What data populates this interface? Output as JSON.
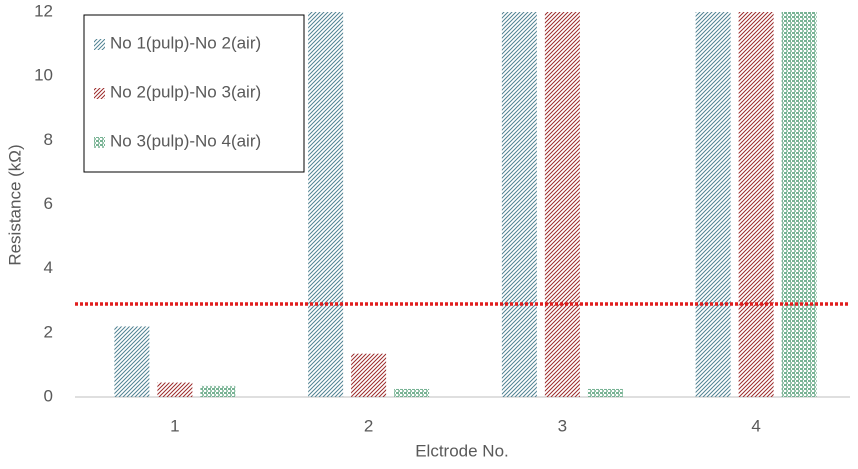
{
  "chart_data": {
    "type": "bar",
    "x_label": "Elctrode No.",
    "y_label": "Resistance (kΩ)",
    "categories": [
      "1",
      "2",
      "3",
      "4"
    ],
    "series": [
      {
        "name": "No 1(pulp)-No 2(air)",
        "color": "#4f8292",
        "hatch": "diagonal",
        "values": [
          2.2,
          12,
          12,
          12
        ]
      },
      {
        "name": "No 2(pulp)-No 3(air)",
        "color": "#9c2a2a",
        "hatch": "diagonal",
        "values": [
          0.45,
          1.35,
          12,
          12
        ]
      },
      {
        "name": "No 3(pulp)-No 4(air)",
        "color": "#2f8a5a",
        "hatch": "dashes",
        "values": [
          0.35,
          0.25,
          0.25,
          12
        ]
      }
    ],
    "ylim": [
      0,
      12
    ],
    "yticks": [
      0,
      2,
      4,
      6,
      8,
      10,
      12
    ],
    "hline": {
      "value": 2.9,
      "color": "#e01e1e",
      "style": "dotted"
    },
    "legend": "top-left"
  }
}
